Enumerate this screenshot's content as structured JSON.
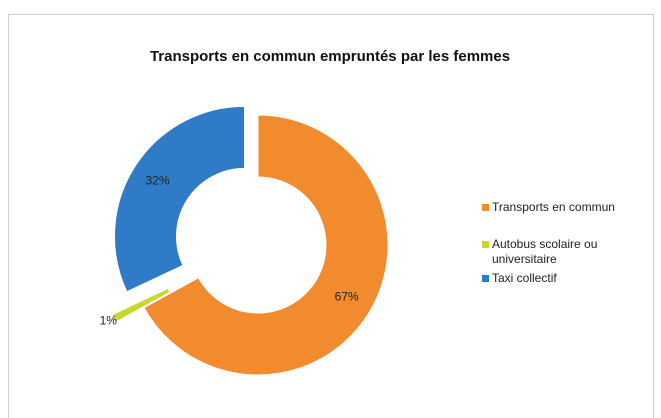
{
  "chart_data": {
    "type": "donut",
    "title": "Transports en commun empruntés par les femmes",
    "categories": [
      "Transports en commun",
      "Autobus scolaire ou universitaire",
      "Taxi collectif"
    ],
    "values": [
      67,
      1,
      32
    ],
    "value_labels": [
      "67%",
      "1%",
      "32%"
    ],
    "colors": [
      "#f28a2e",
      "#c9d62b",
      "#2f7bc8"
    ],
    "legend": "right"
  }
}
